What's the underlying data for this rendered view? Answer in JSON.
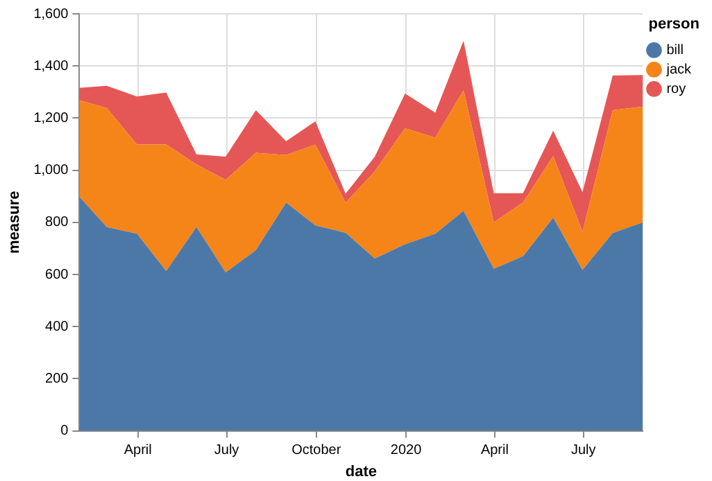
{
  "chart_data": {
    "type": "area",
    "stacked": true,
    "xlabel": "date",
    "ylabel": "measure",
    "legend_title": "person",
    "legend": "right",
    "grid": true,
    "x": [
      "2019-01-31",
      "2019-02-28",
      "2019-03-31",
      "2019-04-30",
      "2019-05-31",
      "2019-06-30",
      "2019-07-31",
      "2019-08-31",
      "2019-09-30",
      "2019-10-31",
      "2019-11-30",
      "2019-12-31",
      "2020-01-31",
      "2020-02-29",
      "2020-03-31",
      "2020-04-30",
      "2020-05-31",
      "2020-06-30",
      "2020-07-31",
      "2020-08-31"
    ],
    "xlim": [
      "2019-01-31",
      "2020-08-31"
    ],
    "xticks": [
      {
        "value": "2019-04-01",
        "label": "April"
      },
      {
        "value": "2019-07-01",
        "label": "July"
      },
      {
        "value": "2019-10-01",
        "label": "October"
      },
      {
        "value": "2020-01-01",
        "label": "2020"
      },
      {
        "value": "2020-04-01",
        "label": "April"
      },
      {
        "value": "2020-07-01",
        "label": "July"
      }
    ],
    "ylim": [
      0,
      1600
    ],
    "yticks": [
      0,
      200,
      400,
      600,
      800,
      {
        "value": 1000,
        "label": "1,000"
      },
      {
        "value": 1200,
        "label": "1,200"
      },
      {
        "value": 1400,
        "label": "1,400"
      },
      {
        "value": 1600,
        "label": "1,600"
      }
    ],
    "series": [
      {
        "name": "bill",
        "color": "#4c78a8",
        "values": [
          898,
          782,
          756,
          613,
          782,
          608,
          693,
          876,
          788,
          760,
          661,
          716,
          756,
          844,
          622,
          670,
          818,
          617,
          759,
          800
        ]
      },
      {
        "name": "jack",
        "color": "#f58518",
        "values": [
          370,
          457,
          343,
          486,
          240,
          355,
          374,
          182,
          311,
          115,
          335,
          445,
          369,
          463,
          178,
          206,
          236,
          147,
          471,
          444
        ]
      },
      {
        "name": "roy",
        "color": "#e45756",
        "values": [
          48,
          85,
          184,
          199,
          39,
          89,
          163,
          53,
          89,
          35,
          56,
          133,
          96,
          190,
          112,
          36,
          98,
          152,
          133,
          121
        ]
      }
    ]
  }
}
